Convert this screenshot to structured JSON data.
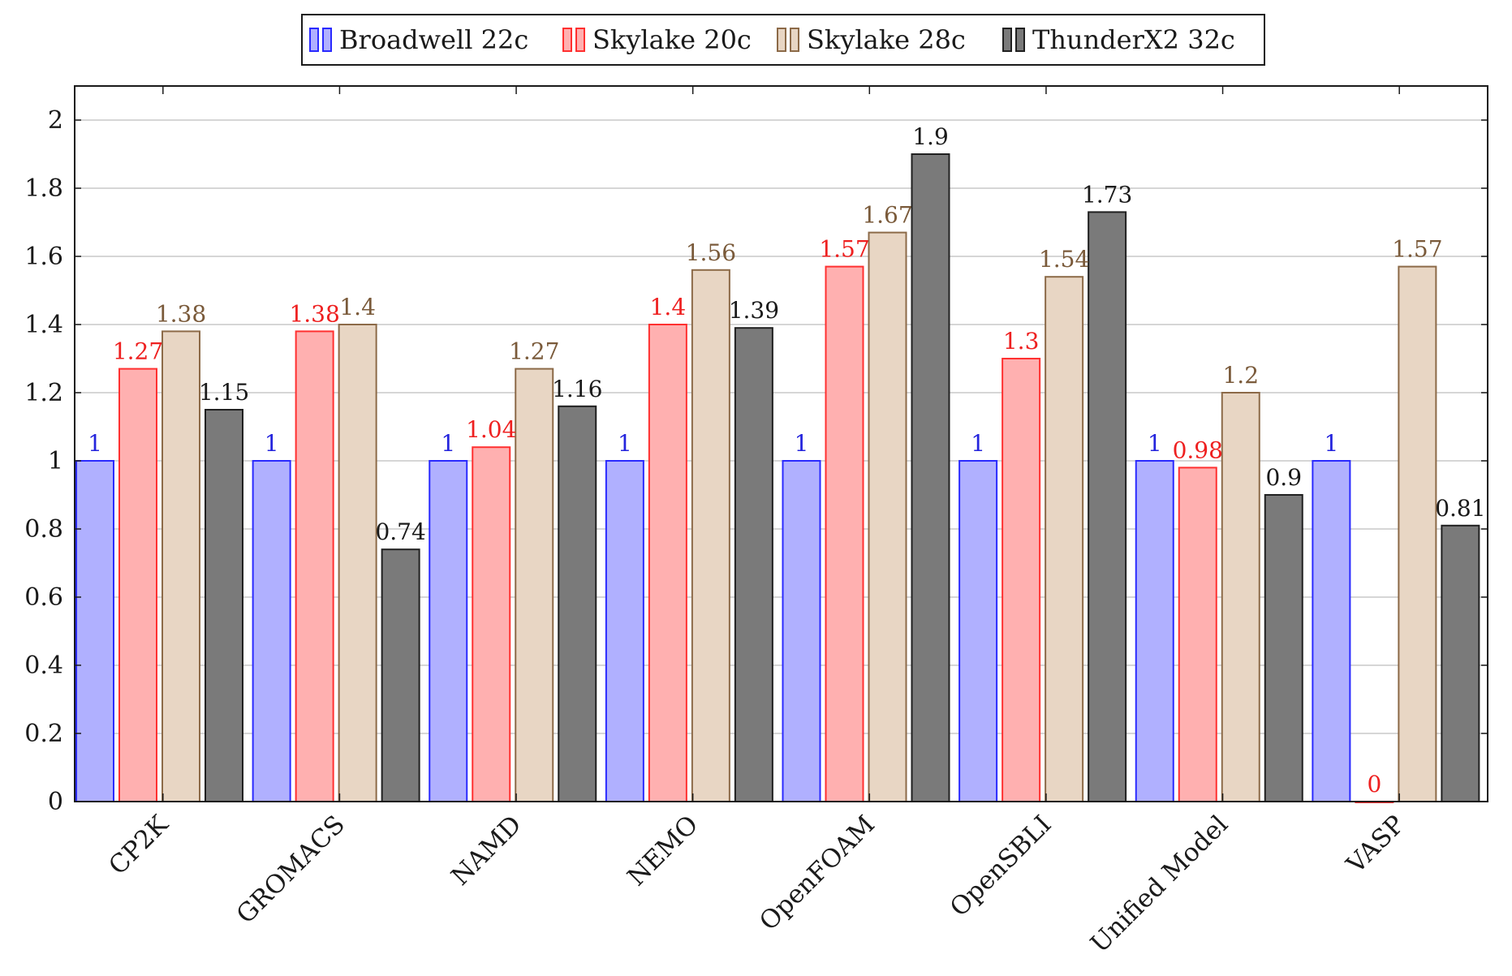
{
  "chart_data": {
    "type": "bar",
    "categories": [
      "CP2K",
      "GROMACS",
      "NAMD",
      "NEMO",
      "OpenFOAM",
      "OpenSBLI",
      "Unified Model",
      "VASP"
    ],
    "series": [
      {
        "name": "Broadwell 22c",
        "values": [
          1,
          1,
          1,
          1,
          1,
          1,
          1,
          1
        ],
        "labels": [
          "1",
          "1",
          "1",
          "1",
          "1",
          "1",
          "1",
          "1"
        ],
        "fill": "#b0b0ff",
        "stroke": "#2a2aff",
        "label_color": "#2424dd"
      },
      {
        "name": "Skylake 20c",
        "values": [
          1.27,
          1.38,
          1.04,
          1.4,
          1.57,
          1.3,
          0.98,
          0
        ],
        "labels": [
          "1.27",
          "1.38",
          "1.04",
          "1.4",
          "1.57",
          "1.3",
          "0.98",
          "0"
        ],
        "fill": "#ffb0b0",
        "stroke": "#ff3030",
        "label_color": "#ee2020"
      },
      {
        "name": "Skylake 28c",
        "values": [
          1.38,
          1.4,
          1.27,
          1.56,
          1.67,
          1.54,
          1.2,
          1.57
        ],
        "labels": [
          "1.38",
          "1.4",
          "1.27",
          "1.56",
          "1.67",
          "1.54",
          "1.2",
          "1.57"
        ],
        "fill": "#e8d6c4",
        "stroke": "#8c6a48",
        "label_color": "#7a5a3a"
      },
      {
        "name": "ThunderX2 32c",
        "values": [
          1.15,
          0.74,
          1.16,
          1.39,
          1.9,
          1.73,
          0.9,
          0.81
        ],
        "labels": [
          "1.15",
          "0.74",
          "1.16",
          "1.39",
          "1.9",
          "1.73",
          "0.9",
          "0.81"
        ],
        "fill": "#7a7a7a",
        "stroke": "#202020",
        "label_color": "#1a1a1a"
      }
    ],
    "ylim": [
      0,
      2.1
    ],
    "yticks": [
      0,
      0.2,
      0.4,
      0.6,
      0.8,
      1,
      1.2,
      1.4,
      1.6,
      1.8,
      2
    ],
    "ytick_labels": [
      "0",
      "0.2",
      "0.4",
      "0.6",
      "0.8",
      "1",
      "1.2",
      "1.4",
      "1.6",
      "1.8",
      "2"
    ],
    "grid": true,
    "legend_position": "top-center"
  }
}
